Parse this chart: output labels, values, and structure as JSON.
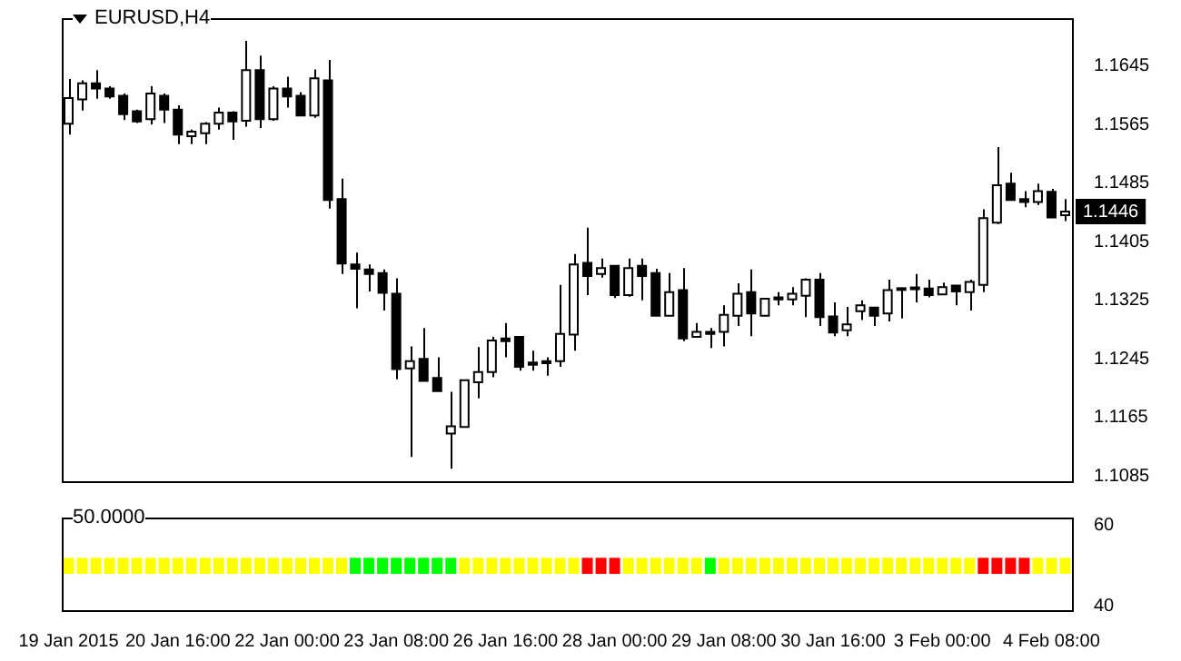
{
  "chart_data": [
    {
      "type": "candlestick",
      "title": "EURUSD,H4",
      "tick_labels": "y",
      "legend": false,
      "categories": [
        null,
        null,
        null,
        null,
        null,
        null,
        null,
        null,
        null,
        null,
        null,
        null,
        null,
        null,
        null,
        null,
        null,
        null,
        null,
        null,
        null,
        null,
        null,
        null,
        null,
        null,
        null,
        null,
        null,
        null,
        null,
        null,
        null,
        null,
        null,
        null,
        null,
        null,
        null,
        null,
        null,
        null,
        null,
        null,
        null,
        null,
        null,
        null,
        null,
        null,
        null,
        null,
        null,
        null,
        null,
        null,
        null,
        null,
        null,
        null,
        null,
        null,
        null,
        null,
        null,
        null,
        null,
        null,
        null,
        null,
        null,
        null,
        null,
        null
      ],
      "ohlc": [
        [
          1.1566,
          1.1627,
          1.1551,
          1.1601
        ],
        [
          1.1599,
          1.1625,
          1.1584,
          1.1621
        ],
        [
          1.1621,
          1.1639,
          1.16,
          1.1614
        ],
        [
          1.1614,
          1.1617,
          1.16,
          1.1603
        ],
        [
          1.1604,
          1.1607,
          1.1571,
          1.1579
        ],
        [
          1.1583,
          1.1585,
          1.1567,
          1.1569
        ],
        [
          1.1572,
          1.1617,
          1.1565,
          1.1607
        ],
        [
          1.1604,
          1.1607,
          1.1567,
          1.1585
        ],
        [
          1.1585,
          1.1591,
          1.1538,
          1.1551
        ],
        [
          1.1549,
          1.1558,
          1.1538,
          1.1555
        ],
        [
          1.1553,
          1.1568,
          1.1538,
          1.1566
        ],
        [
          1.1566,
          1.1588,
          1.1558,
          1.1581
        ],
        [
          1.1581,
          1.1583,
          1.1544,
          1.1569
        ],
        [
          1.157,
          1.1679,
          1.1562,
          1.1639
        ],
        [
          1.1639,
          1.1659,
          1.156,
          1.1572
        ],
        [
          1.1572,
          1.1617,
          1.157,
          1.1614
        ],
        [
          1.1614,
          1.163,
          1.1588,
          1.1603
        ],
        [
          1.1604,
          1.1609,
          1.1577,
          1.1577
        ],
        [
          1.1577,
          1.164,
          1.1574,
          1.1628
        ],
        [
          1.1625,
          1.1653,
          1.145,
          1.1462
        ],
        [
          1.1463,
          1.1491,
          1.1361,
          1.1375
        ],
        [
          1.1374,
          1.139,
          1.1314,
          1.1368
        ],
        [
          1.1367,
          1.1374,
          1.1337,
          1.1361
        ],
        [
          1.1362,
          1.1367,
          1.1311,
          1.1335
        ],
        [
          1.1334,
          1.1355,
          1.1217,
          1.1231
        ],
        [
          1.1232,
          1.1262,
          1.1111,
          1.1242
        ],
        [
          1.1245,
          1.1287,
          1.1215,
          1.1215
        ],
        [
          1.1219,
          1.1247,
          1.1201,
          1.1201
        ],
        [
          1.1143,
          1.12,
          1.1095,
          1.1153
        ],
        [
          1.1152,
          1.1216,
          1.1152,
          1.1216
        ],
        [
          1.1213,
          1.1261,
          1.1191,
          1.1227
        ],
        [
          1.1227,
          1.1275,
          1.122,
          1.127
        ],
        [
          1.1273,
          1.1294,
          1.1247,
          1.1269
        ],
        [
          1.1275,
          1.1275,
          1.1229,
          1.1234
        ],
        [
          1.124,
          1.1256,
          1.1229,
          1.1237
        ],
        [
          1.1242,
          1.1247,
          1.1222,
          1.1239
        ],
        [
          1.1242,
          1.1346,
          1.1234,
          1.1279
        ],
        [
          1.1278,
          1.1388,
          1.1256,
          1.1374
        ],
        [
          1.1376,
          1.1424,
          1.1332,
          1.1358
        ],
        [
          1.1361,
          1.1382,
          1.1356,
          1.1369
        ],
        [
          1.1372,
          1.1372,
          1.1328,
          1.1332
        ],
        [
          1.1332,
          1.1382,
          1.133,
          1.1369
        ],
        [
          1.1372,
          1.1382,
          1.1325,
          1.1358
        ],
        [
          1.1362,
          1.1368,
          1.1304,
          1.1304
        ],
        [
          1.1304,
          1.1362,
          1.1304,
          1.1336
        ],
        [
          1.1339,
          1.1369,
          1.1269,
          1.1273
        ],
        [
          1.1275,
          1.1294,
          1.1275,
          1.1282
        ],
        [
          1.1282,
          1.1287,
          1.126,
          1.1279
        ],
        [
          1.1282,
          1.1318,
          1.1262,
          1.1305
        ],
        [
          1.1304,
          1.1348,
          1.129,
          1.1334
        ],
        [
          1.1336,
          1.1367,
          1.1276,
          1.1307
        ],
        [
          1.1304,
          1.1327,
          1.1304,
          1.1327
        ],
        [
          1.1329,
          1.1336,
          1.1318,
          1.1326
        ],
        [
          1.1326,
          1.1343,
          1.1318,
          1.1334
        ],
        [
          1.1331,
          1.1355,
          1.1302,
          1.1353
        ],
        [
          1.1353,
          1.1362,
          1.129,
          1.1302
        ],
        [
          1.1303,
          1.1322,
          1.1276,
          1.1281
        ],
        [
          1.1284,
          1.1316,
          1.1276,
          1.1292
        ],
        [
          1.131,
          1.1325,
          1.1298,
          1.1318
        ],
        [
          1.1315,
          1.1315,
          1.129,
          1.1304
        ],
        [
          1.1307,
          1.1353,
          1.1296,
          1.1339
        ],
        [
          1.1341,
          1.1341,
          1.13,
          1.1339
        ],
        [
          1.1341,
          1.1361,
          1.1322,
          1.134
        ],
        [
          1.1341,
          1.1353,
          1.1329,
          1.1332
        ],
        [
          1.1333,
          1.1349,
          1.1333,
          1.1343
        ],
        [
          1.1345,
          1.1345,
          1.1318,
          1.1337
        ],
        [
          1.1336,
          1.1353,
          1.1311,
          1.135
        ],
        [
          1.1346,
          1.1449,
          1.1336,
          1.1437
        ],
        [
          1.1431,
          1.1534,
          1.1429,
          1.1482
        ],
        [
          1.1484,
          1.1499,
          1.1462,
          1.1462
        ],
        [
          1.1463,
          1.1474,
          1.1452,
          1.1459
        ],
        [
          1.1459,
          1.1484,
          1.1455,
          1.1474
        ],
        [
          1.1473,
          1.1477,
          1.1438,
          1.1438
        ],
        [
          1.1441,
          1.1463,
          1.1433,
          1.1446
        ]
      ],
      "ylim": [
        1.1078,
        1.171
      ],
      "yticks": [
        1.1085,
        1.1165,
        1.1245,
        1.1325,
        1.1405,
        1.1485,
        1.1565,
        1.1645
      ],
      "annotations": [
        {
          "text": "1.1446",
          "y": 1.1446
        }
      ]
    },
    {
      "type": "bar",
      "title": "50.0000",
      "legend": false,
      "categories": [
        "19 Jan 2015",
        null,
        null,
        null,
        null,
        null,
        null,
        null,
        "20 Jan 16:00",
        null,
        null,
        null,
        null,
        null,
        null,
        null,
        "22 Jan 00:00",
        null,
        null,
        null,
        null,
        null,
        null,
        null,
        "23 Jan 08:00",
        null,
        null,
        null,
        null,
        null,
        null,
        null,
        "26 Jan 16:00",
        null,
        null,
        null,
        null,
        null,
        null,
        null,
        "28 Jan 00:00",
        null,
        null,
        null,
        null,
        null,
        null,
        null,
        "29 Jan 08:00",
        null,
        null,
        null,
        null,
        null,
        null,
        null,
        "30 Jan 16:00",
        null,
        null,
        null,
        null,
        null,
        null,
        null,
        "3 Feb 00:00",
        null,
        null,
        null,
        null,
        null,
        null,
        null,
        "4 Feb 08:00",
        null
      ],
      "values": [
        4,
        4,
        4,
        4,
        4,
        4,
        4,
        4,
        4,
        4,
        4,
        4,
        4,
        4,
        4,
        4,
        4,
        4,
        4,
        4,
        4,
        4,
        4,
        4,
        4,
        4,
        4,
        4,
        4,
        4,
        4,
        4,
        4,
        4,
        4,
        4,
        4,
        4,
        4,
        4,
        4,
        4,
        4,
        4,
        4,
        4,
        4,
        4,
        4,
        4,
        4,
        4,
        4,
        4,
        4,
        4,
        4,
        4,
        4,
        4,
        4,
        4,
        4,
        4,
        4,
        4,
        4,
        4,
        4,
        4,
        4,
        4,
        4,
        4
      ],
      "base": [
        48,
        48,
        48,
        48,
        48,
        48,
        48,
        48,
        48,
        48,
        48,
        48,
        48,
        48,
        48,
        48,
        48,
        48,
        48,
        48,
        48,
        48,
        48,
        48,
        48,
        48,
        48,
        48,
        48,
        48,
        48,
        48,
        48,
        48,
        48,
        48,
        48,
        48,
        48,
        48,
        48,
        48,
        48,
        48,
        48,
        48,
        48,
        48,
        48,
        48,
        48,
        48,
        48,
        48,
        48,
        48,
        48,
        48,
        48,
        48,
        48,
        48,
        48,
        48,
        48,
        48,
        48,
        48,
        48,
        48,
        48,
        48,
        48,
        48
      ],
      "colors": [
        "#ffff00",
        "#ffff00",
        "#ffff00",
        "#ffff00",
        "#ffff00",
        "#ffff00",
        "#ffff00",
        "#ffff00",
        "#ffff00",
        "#ffff00",
        "#ffff00",
        "#ffff00",
        "#ffff00",
        "#ffff00",
        "#ffff00",
        "#ffff00",
        "#ffff00",
        "#ffff00",
        "#ffff00",
        "#ffff00",
        "#ffff00",
        "#00ff00",
        "#00ff00",
        "#00ff00",
        "#00ff00",
        "#00ff00",
        "#00ff00",
        "#00ff00",
        "#00ff00",
        "#ffff00",
        "#ffff00",
        "#ffff00",
        "#ffff00",
        "#ffff00",
        "#ffff00",
        "#ffff00",
        "#ffff00",
        "#ffff00",
        "#ff0000",
        "#ff0000",
        "#ff0000",
        "#ffff00",
        "#ffff00",
        "#ffff00",
        "#ffff00",
        "#ffff00",
        "#ffff00",
        "#00ff00",
        "#ffff00",
        "#ffff00",
        "#ffff00",
        "#ffff00",
        "#ffff00",
        "#ffff00",
        "#ffff00",
        "#ffff00",
        "#ffff00",
        "#ffff00",
        "#ffff00",
        "#ffff00",
        "#ffff00",
        "#ffff00",
        "#ffff00",
        "#ffff00",
        "#ffff00",
        "#ffff00",
        "#ffff00",
        "#ff0000",
        "#ff0000",
        "#ff0000",
        "#ff0000",
        "#ffff00",
        "#ffff00",
        "#ffff00"
      ],
      "ylim": [
        39,
        62
      ],
      "yticks": [
        40,
        60
      ]
    }
  ]
}
